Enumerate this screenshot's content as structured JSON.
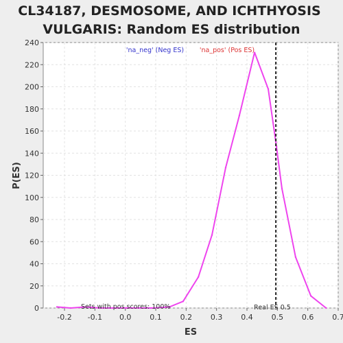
{
  "chart_data": {
    "type": "line",
    "title": "CL34187, DESMOSOME, AND ICHTHYOSIS VULGARIS: Random ES distribution",
    "title_lines": [
      "CL34187, DESMOSOME, AND ICHTHYOSIS",
      "VULGARIS: Random ES distribution"
    ],
    "xlabel": "ES",
    "ylabel": "P(ES)",
    "xlim": [
      -0.27,
      0.7
    ],
    "ylim": [
      0,
      240
    ],
    "xticks": [
      -0.2,
      -0.1,
      0.0,
      0.1,
      0.2,
      0.3,
      0.4,
      0.5,
      0.6,
      0.7
    ],
    "xtick_labels": [
      "-0.2",
      "-0.1",
      "0.0",
      "0.1",
      "0.2",
      "0.3",
      "0.4",
      "0.5",
      "0.6",
      "0.7"
    ],
    "yticks": [
      0,
      20,
      40,
      60,
      80,
      100,
      120,
      140,
      160,
      180,
      200,
      220,
      240
    ],
    "ytick_labels": [
      "0",
      "20",
      "40",
      "60",
      "80",
      "100",
      "120",
      "140",
      "160",
      "180",
      "200",
      "220",
      "240"
    ],
    "grid": true,
    "legend": [
      {
        "label": "'na_neg' (Neg ES)",
        "color": "#3333cc"
      },
      {
        "label": "'na_pos' (Pos ES)",
        "color": "#dd3333"
      }
    ],
    "series": [
      {
        "color": "#ee44ee",
        "x": [
          -0.225,
          -0.18,
          -0.13,
          -0.085,
          -0.04,
          0.005,
          0.05,
          0.095,
          0.145,
          0.19,
          0.24,
          0.285,
          0.33,
          0.375,
          0.425,
          0.47,
          0.495,
          0.515,
          0.56,
          0.61,
          0.66
        ],
        "y": [
          1,
          0,
          1,
          0,
          0,
          0,
          0,
          0,
          1,
          6,
          28,
          66,
          127,
          174,
          231,
          198,
          150,
          108,
          46,
          11,
          0
        ]
      }
    ],
    "real_es": 0.495,
    "real_es_label": "Real ES 0.5",
    "annotation": "Sets with pos scores: 100%"
  }
}
